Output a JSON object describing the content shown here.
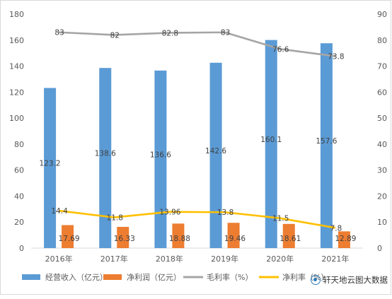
{
  "chart_data": {
    "type": "bar",
    "categories": [
      "2016年",
      "2017年",
      "2018年",
      "2019年",
      "2020年",
      "2021年"
    ],
    "series": [
      {
        "name": "经营收入（亿元）",
        "kind": "bar",
        "axis": "left",
        "color": "#5b9bd5",
        "values": [
          123.2,
          138.6,
          136.6,
          142.6,
          160.1,
          157.6
        ],
        "labels": [
          "123.2",
          "138.6",
          "136.6",
          "142.6",
          "160.1",
          "157.6"
        ]
      },
      {
        "name": "净利润（亿元）",
        "kind": "bar",
        "axis": "left",
        "color": "#ed7d31",
        "values": [
          17.69,
          16.33,
          18.88,
          19.46,
          18.61,
          12.89
        ],
        "labels": [
          "17.69",
          "16.33",
          "18.88",
          "19.46",
          "18.61",
          "12.89"
        ]
      },
      {
        "name": "毛利率（%）",
        "kind": "line",
        "axis": "right",
        "color": "#a5a5a5",
        "values": [
          83,
          82,
          82.8,
          83,
          76.6,
          73.8
        ],
        "labels": [
          "83",
          "82",
          "82.8",
          "83",
          "76.6",
          "73.8"
        ]
      },
      {
        "name": "净利率（%）",
        "kind": "line",
        "axis": "right",
        "color": "#ffc000",
        "values": [
          14.4,
          11.8,
          13.96,
          13.8,
          11.5,
          7.8
        ],
        "labels": [
          "14.4",
          "11.8",
          "13.96",
          "13.8",
          "11.5",
          "7.8"
        ]
      }
    ],
    "y_left": {
      "ylim": [
        0,
        180
      ],
      "ticks": [
        "0",
        "20",
        "40",
        "60",
        "80",
        "100",
        "120",
        "140",
        "160",
        "180"
      ]
    },
    "y_right": {
      "ylim": [
        0,
        90
      ],
      "ticks": [
        "0",
        "10",
        "20",
        "30",
        "40",
        "50",
        "60",
        "70",
        "80",
        "90"
      ]
    },
    "grid": false,
    "legend": "bottom",
    "title": "",
    "xlabel": "",
    "ylabel": ""
  },
  "legend_items": [
    "经营收入（亿元）",
    "净利润（亿元）",
    "毛利率（%）",
    "净利率（%）"
  ],
  "watermark": "轩天地云图大数据"
}
